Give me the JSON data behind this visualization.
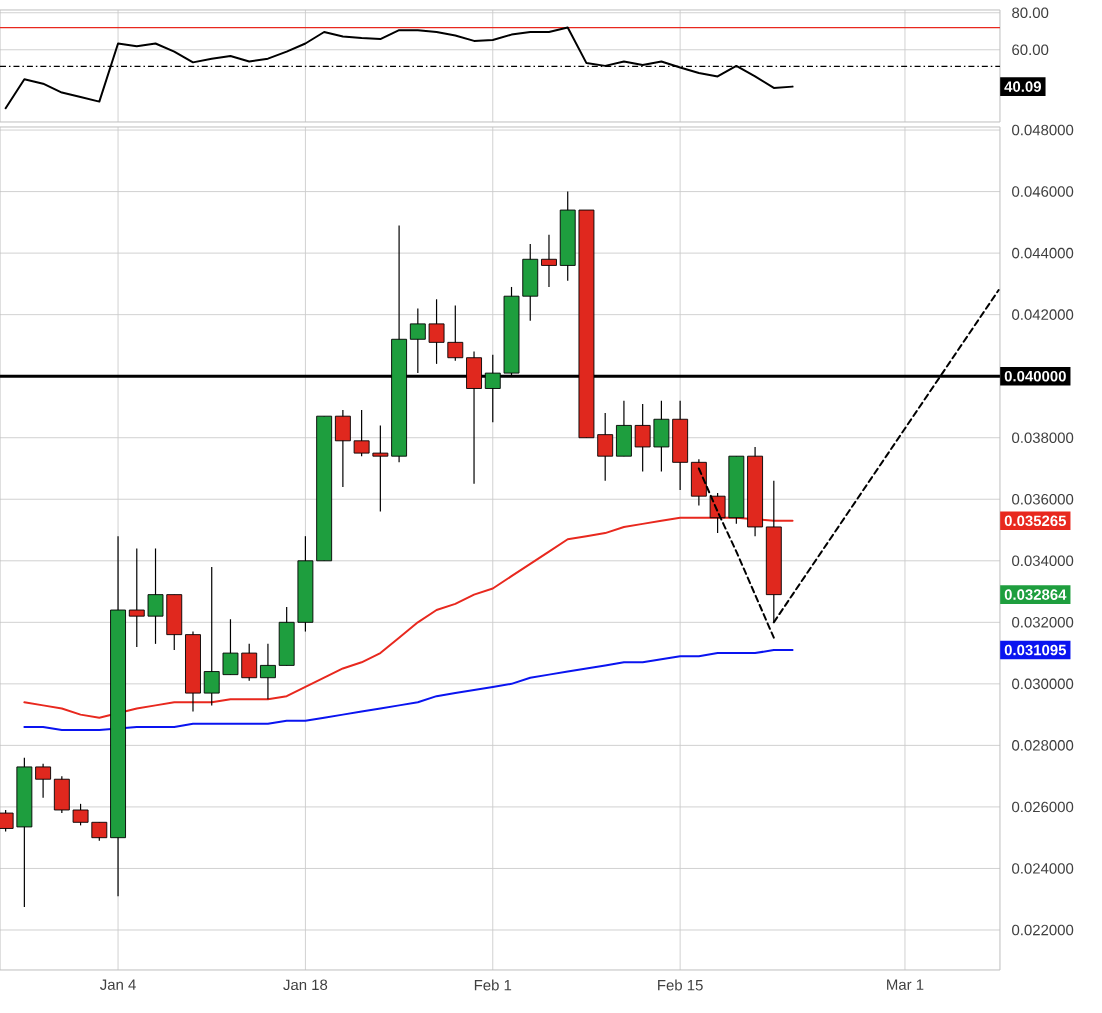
{
  "chart_data": [
    {
      "type": "line",
      "color": "#000000",
      "categories": [
        null,
        null,
        null,
        null,
        null,
        null,
        null,
        null,
        null,
        null,
        null,
        null,
        null,
        null,
        null,
        null,
        null,
        null,
        null,
        null,
        null,
        null,
        null,
        null,
        null,
        null,
        null,
        null,
        null,
        null,
        null,
        null,
        null,
        null,
        null,
        null,
        null,
        null,
        null,
        null,
        null,
        null,
        null,
        null,
        null,
        null,
        null,
        null,
        null,
        null,
        null,
        null,
        null,
        null
      ],
      "values": [
        28.4,
        44.1,
        41.7,
        36.9,
        34.5,
        32.0,
        63.4,
        61.9,
        63.4,
        59.0,
        53.2,
        55.2,
        56.6,
        53.7,
        55.2,
        59.0,
        63.4,
        69.6,
        67.2,
        66.3,
        65.8,
        70.6,
        70.6,
        69.6,
        67.7,
        64.8,
        65.3,
        68.2,
        69.6,
        69.6,
        72.0,
        52.8,
        51.3,
        53.7,
        51.8,
        53.7,
        50.4,
        47.5,
        45.6,
        51.3,
        45.6,
        39.4,
        40.1,
        null,
        null,
        null,
        null,
        null,
        null,
        null,
        null,
        null,
        null,
        null
      ],
      "ylim": [
        21,
        81.5
      ],
      "yticks": [
        {
          "value": 60,
          "label": "60.00"
        },
        {
          "value": 80,
          "label": "80.00"
        }
      ],
      "tick_labels": "y",
      "grid": true,
      "ref_lines": [
        {
          "axis": "y",
          "value": 72,
          "color": "#e8281e"
        },
        {
          "axis": "y",
          "value": 51,
          "color": "#000000",
          "line_style": "dashdot"
        }
      ],
      "annotations": [
        "40.09"
      ]
    },
    {
      "type": "candlestick",
      "categories": [
        null,
        null,
        null,
        null,
        null,
        null,
        "Jan 4",
        null,
        null,
        null,
        null,
        null,
        null,
        null,
        null,
        null,
        "Jan 18",
        null,
        null,
        null,
        null,
        null,
        null,
        null,
        null,
        null,
        "Feb 1",
        null,
        null,
        null,
        null,
        null,
        null,
        null,
        null,
        null,
        "Feb 15",
        null,
        null,
        null,
        null,
        null,
        null,
        null,
        null,
        null,
        null,
        null,
        "Mar 1",
        null,
        null,
        null,
        null,
        null
      ],
      "ohlc": [
        [
          0.0258,
          0.0259,
          0.0252,
          0.0253
        ],
        [
          0.02535,
          0.0276,
          0.02275,
          0.0273
        ],
        [
          0.0273,
          0.0274,
          0.0263,
          0.0269
        ],
        [
          0.0269,
          0.027,
          0.0258,
          0.0259
        ],
        [
          0.0259,
          0.0261,
          0.0254,
          0.0255
        ],
        [
          0.0255,
          0.0255,
          0.0249,
          0.025
        ],
        [
          0.025,
          0.0348,
          0.0231,
          0.0324
        ],
        [
          0.0324,
          0.0344,
          0.0312,
          0.0322
        ],
        [
          0.0322,
          0.0344,
          0.0313,
          0.0329
        ],
        [
          0.0329,
          0.0329,
          0.0311,
          0.0316
        ],
        [
          0.0316,
          0.0317,
          0.0291,
          0.0297
        ],
        [
          0.0297,
          0.0338,
          0.0293,
          0.0304
        ],
        [
          0.0303,
          0.0321,
          0.0303,
          0.031
        ],
        [
          0.031,
          0.0313,
          0.0301,
          0.0302
        ],
        [
          0.0302,
          0.0313,
          0.0295,
          0.0306
        ],
        [
          0.0306,
          0.0325,
          0.0306,
          0.032
        ],
        [
          0.032,
          0.0348,
          0.0317,
          0.034
        ],
        [
          0.034,
          0.0387,
          0.034,
          0.0387
        ],
        [
          0.0387,
          0.0389,
          0.0364,
          0.0379
        ],
        [
          0.0379,
          0.0389,
          0.0374,
          0.0375
        ],
        [
          0.0375,
          0.0384,
          0.0356,
          0.0374
        ],
        [
          0.0374,
          0.0449,
          0.0372,
          0.0412
        ],
        [
          0.0412,
          0.0422,
          0.0401,
          0.0417
        ],
        [
          0.0417,
          0.0425,
          0.0404,
          0.0411
        ],
        [
          0.0411,
          0.0423,
          0.0405,
          0.0406
        ],
        [
          0.0406,
          0.0408,
          0.0365,
          0.0396
        ],
        [
          0.0396,
          0.0407,
          0.0385,
          0.0401
        ],
        [
          0.0401,
          0.0429,
          0.04,
          0.0426
        ],
        [
          0.0426,
          0.0443,
          0.0418,
          0.0438
        ],
        [
          0.0438,
          0.0446,
          0.0429,
          0.0436
        ],
        [
          0.0436,
          0.046,
          0.0431,
          0.0454
        ],
        [
          0.0454,
          0.0454,
          0.038,
          0.038
        ],
        [
          0.0381,
          0.0388,
          0.0366,
          0.0374
        ],
        [
          0.0374,
          0.0392,
          0.0374,
          0.0384
        ],
        [
          0.0384,
          0.0391,
          0.0369,
          0.0377
        ],
        [
          0.0377,
          0.0392,
          0.0369,
          0.0386
        ],
        [
          0.0386,
          0.0392,
          0.0363,
          0.0372
        ],
        [
          0.0372,
          0.0373,
          0.0358,
          0.0361
        ],
        [
          0.0361,
          0.0362,
          0.0349,
          0.0354
        ],
        [
          0.0354,
          0.0374,
          0.0352,
          0.0374
        ],
        [
          0.0374,
          0.0377,
          0.0348,
          0.0351
        ],
        [
          0.0351,
          0.0366,
          0.032,
          0.0329
        ],
        null,
        null,
        null,
        null,
        null,
        null,
        null,
        null,
        null,
        null,
        null,
        null
      ],
      "series": [
        {
          "type": "line",
          "color": "#e8281e",
          "values": [
            null,
            0.0294,
            0.0293,
            0.0292,
            0.029,
            0.0289,
            null,
            0.0292,
            0.0293,
            0.0294,
            0.0294,
            0.0294,
            0.0295,
            0.0295,
            0.0295,
            0.0296,
            0.0299,
            0.0302,
            0.0305,
            0.0307,
            0.031,
            0.0315,
            0.032,
            0.0324,
            0.0326,
            0.0329,
            0.0331,
            0.0335,
            0.0339,
            0.0343,
            0.0347,
            0.0348,
            0.0349,
            0.0351,
            0.0352,
            0.0353,
            0.0354,
            0.0354,
            0.0354,
            0.0354,
            null,
            0.0353,
            0.0353,
            null,
            null,
            null,
            null,
            null,
            null,
            null,
            null,
            null,
            null,
            null
          ]
        },
        {
          "type": "line",
          "color": "#0a14f0",
          "values": [
            null,
            0.0286,
            0.0286,
            0.0285,
            0.0285,
            0.0285,
            null,
            0.0286,
            0.0286,
            0.0286,
            0.0287,
            0.0287,
            0.0287,
            0.0287,
            0.0287,
            0.0288,
            0.0288,
            0.0289,
            0.029,
            0.0291,
            0.0292,
            0.0293,
            0.0294,
            0.0296,
            0.0297,
            0.0298,
            0.0299,
            0.03,
            0.0302,
            0.0303,
            0.0304,
            0.0305,
            0.0306,
            0.0307,
            0.0307,
            0.0308,
            0.0309,
            0.0309,
            0.031,
            0.031,
            0.031,
            0.0311,
            0.0311,
            null,
            null,
            null,
            null,
            null,
            null,
            null,
            null,
            null,
            null,
            null
          ]
        },
        {
          "type": "line",
          "color": "#000000",
          "line_style": "dashed",
          "values": [
            null,
            null,
            null,
            null,
            null,
            null,
            null,
            null,
            null,
            null,
            null,
            null,
            null,
            null,
            null,
            null,
            null,
            null,
            null,
            null,
            null,
            null,
            null,
            null,
            null,
            null,
            null,
            null,
            null,
            null,
            null,
            null,
            null,
            null,
            null,
            null,
            null,
            0.037,
            0.0356,
            0.0343,
            0.0329,
            0.0315,
            null,
            null,
            null,
            null,
            null,
            null,
            null,
            null,
            null,
            null,
            null,
            null
          ]
        },
        {
          "type": "line",
          "color": "#000000",
          "line_style": "dashed",
          "values": [
            null,
            null,
            null,
            null,
            null,
            null,
            null,
            null,
            null,
            null,
            null,
            null,
            null,
            null,
            null,
            null,
            null,
            null,
            null,
            null,
            null,
            null,
            null,
            null,
            null,
            null,
            null,
            null,
            null,
            null,
            null,
            null,
            null,
            null,
            null,
            null,
            null,
            null,
            null,
            null,
            null,
            0.032,
            0.0329,
            0.0338,
            0.0347,
            0.0356,
            0.0365,
            0.0374,
            0.0383,
            0.0392,
            0.0401,
            0.041,
            0.0419,
            0.0428
          ]
        }
      ],
      "ylim": [
        0.0207,
        0.0481
      ],
      "yticks": [
        {
          "value": 0.022,
          "label": "0.022000"
        },
        {
          "value": 0.024,
          "label": "0.024000"
        },
        {
          "value": 0.026,
          "label": "0.026000"
        },
        {
          "value": 0.028,
          "label": "0.028000"
        },
        {
          "value": 0.03,
          "label": "0.030000"
        },
        {
          "value": 0.032,
          "label": "0.032000"
        },
        {
          "value": 0.034,
          "label": "0.034000"
        },
        {
          "value": 0.036,
          "label": "0.036000"
        },
        {
          "value": 0.038,
          "label": "0.038000"
        },
        {
          "value": 0.04,
          "label": null
        },
        {
          "value": 0.042,
          "label": "0.042000"
        },
        {
          "value": 0.044,
          "label": "0.044000"
        },
        {
          "value": 0.046,
          "label": "0.046000"
        },
        {
          "value": 0.048,
          "label": "0.048000"
        }
      ],
      "grid": true,
      "ref_lines": [
        {
          "axis": "y",
          "value": 0.04,
          "label": "0.040000",
          "color": "#000000"
        }
      ],
      "annotations": [
        "0.035265",
        "0.032864",
        "0.031095"
      ]
    }
  ]
}
